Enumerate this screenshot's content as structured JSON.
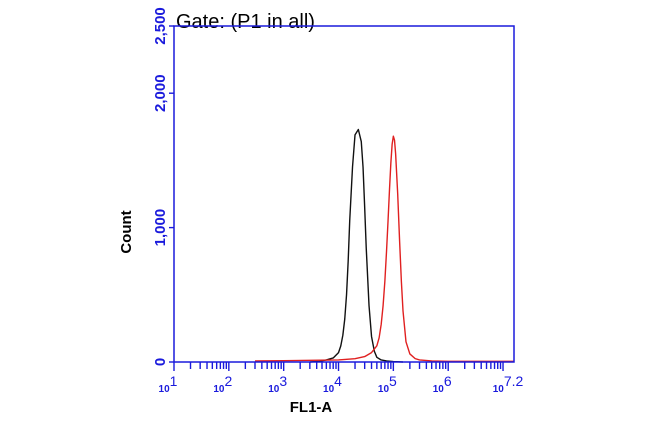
{
  "colors": {
    "axis": "#1a1adc",
    "series_black": "#111111",
    "series_red": "#e02020",
    "text": "#000000"
  },
  "chart_data": {
    "type": "line",
    "title": "Gate: (P1 in all)",
    "xlabel": "FL1-A",
    "ylabel": "Count",
    "x_scale": "log",
    "xlim": [
      10,
      15848932
    ],
    "ylim": [
      0,
      2500
    ],
    "grid": false,
    "legend": "none",
    "y_ticks": [
      {
        "value": 0,
        "label": "0"
      },
      {
        "value": 1000,
        "label": "1,000"
      },
      {
        "value": 2000,
        "label": "2,000"
      },
      {
        "value": 2500,
        "label": "2,500"
      }
    ],
    "x_ticks": [
      {
        "value": 10,
        "base": "10",
        "exp": "1"
      },
      {
        "value": 100,
        "base": "10",
        "exp": "2"
      },
      {
        "value": 1000,
        "base": "10",
        "exp": "3"
      },
      {
        "value": 10000,
        "base": "10",
        "exp": "4"
      },
      {
        "value": 100000,
        "base": "10",
        "exp": "5"
      },
      {
        "value": 1000000,
        "base": "10",
        "exp": "6"
      },
      {
        "value": 15848932,
        "base": "10",
        "exp": "7.2"
      }
    ],
    "series": [
      {
        "color": "#111111",
        "x": [
          3000,
          4500,
          6000,
          8000,
          10000,
          11000,
          12000,
          13000,
          14000,
          15000,
          16000,
          18000,
          20000,
          23000,
          26000,
          28000,
          30000,
          32000,
          36000,
          40000,
          45000,
          50000,
          60000,
          75000,
          100000,
          150000
        ],
        "y": [
          0,
          5,
          15,
          30,
          70,
          120,
          200,
          320,
          500,
          750,
          1050,
          1450,
          1690,
          1730,
          1640,
          1450,
          1150,
          850,
          420,
          190,
          80,
          35,
          15,
          8,
          3,
          0
        ]
      },
      {
        "color": "#e02020",
        "x": [
          300,
          1000,
          10000,
          20000,
          30000,
          40000,
          50000,
          55000,
          60000,
          65000,
          70000,
          75000,
          80000,
          85000,
          90000,
          95000,
          100000,
          105000,
          110000,
          120000,
          130000,
          140000,
          150000,
          170000,
          200000,
          250000,
          300000,
          500000,
          1000000,
          3000000,
          15848932
        ],
        "y": [
          8,
          10,
          15,
          25,
          40,
          70,
          120,
          180,
          280,
          420,
          600,
          820,
          1050,
          1280,
          1480,
          1620,
          1680,
          1650,
          1550,
          1250,
          900,
          600,
          380,
          150,
          60,
          25,
          15,
          8,
          5,
          5,
          5
        ]
      }
    ]
  }
}
